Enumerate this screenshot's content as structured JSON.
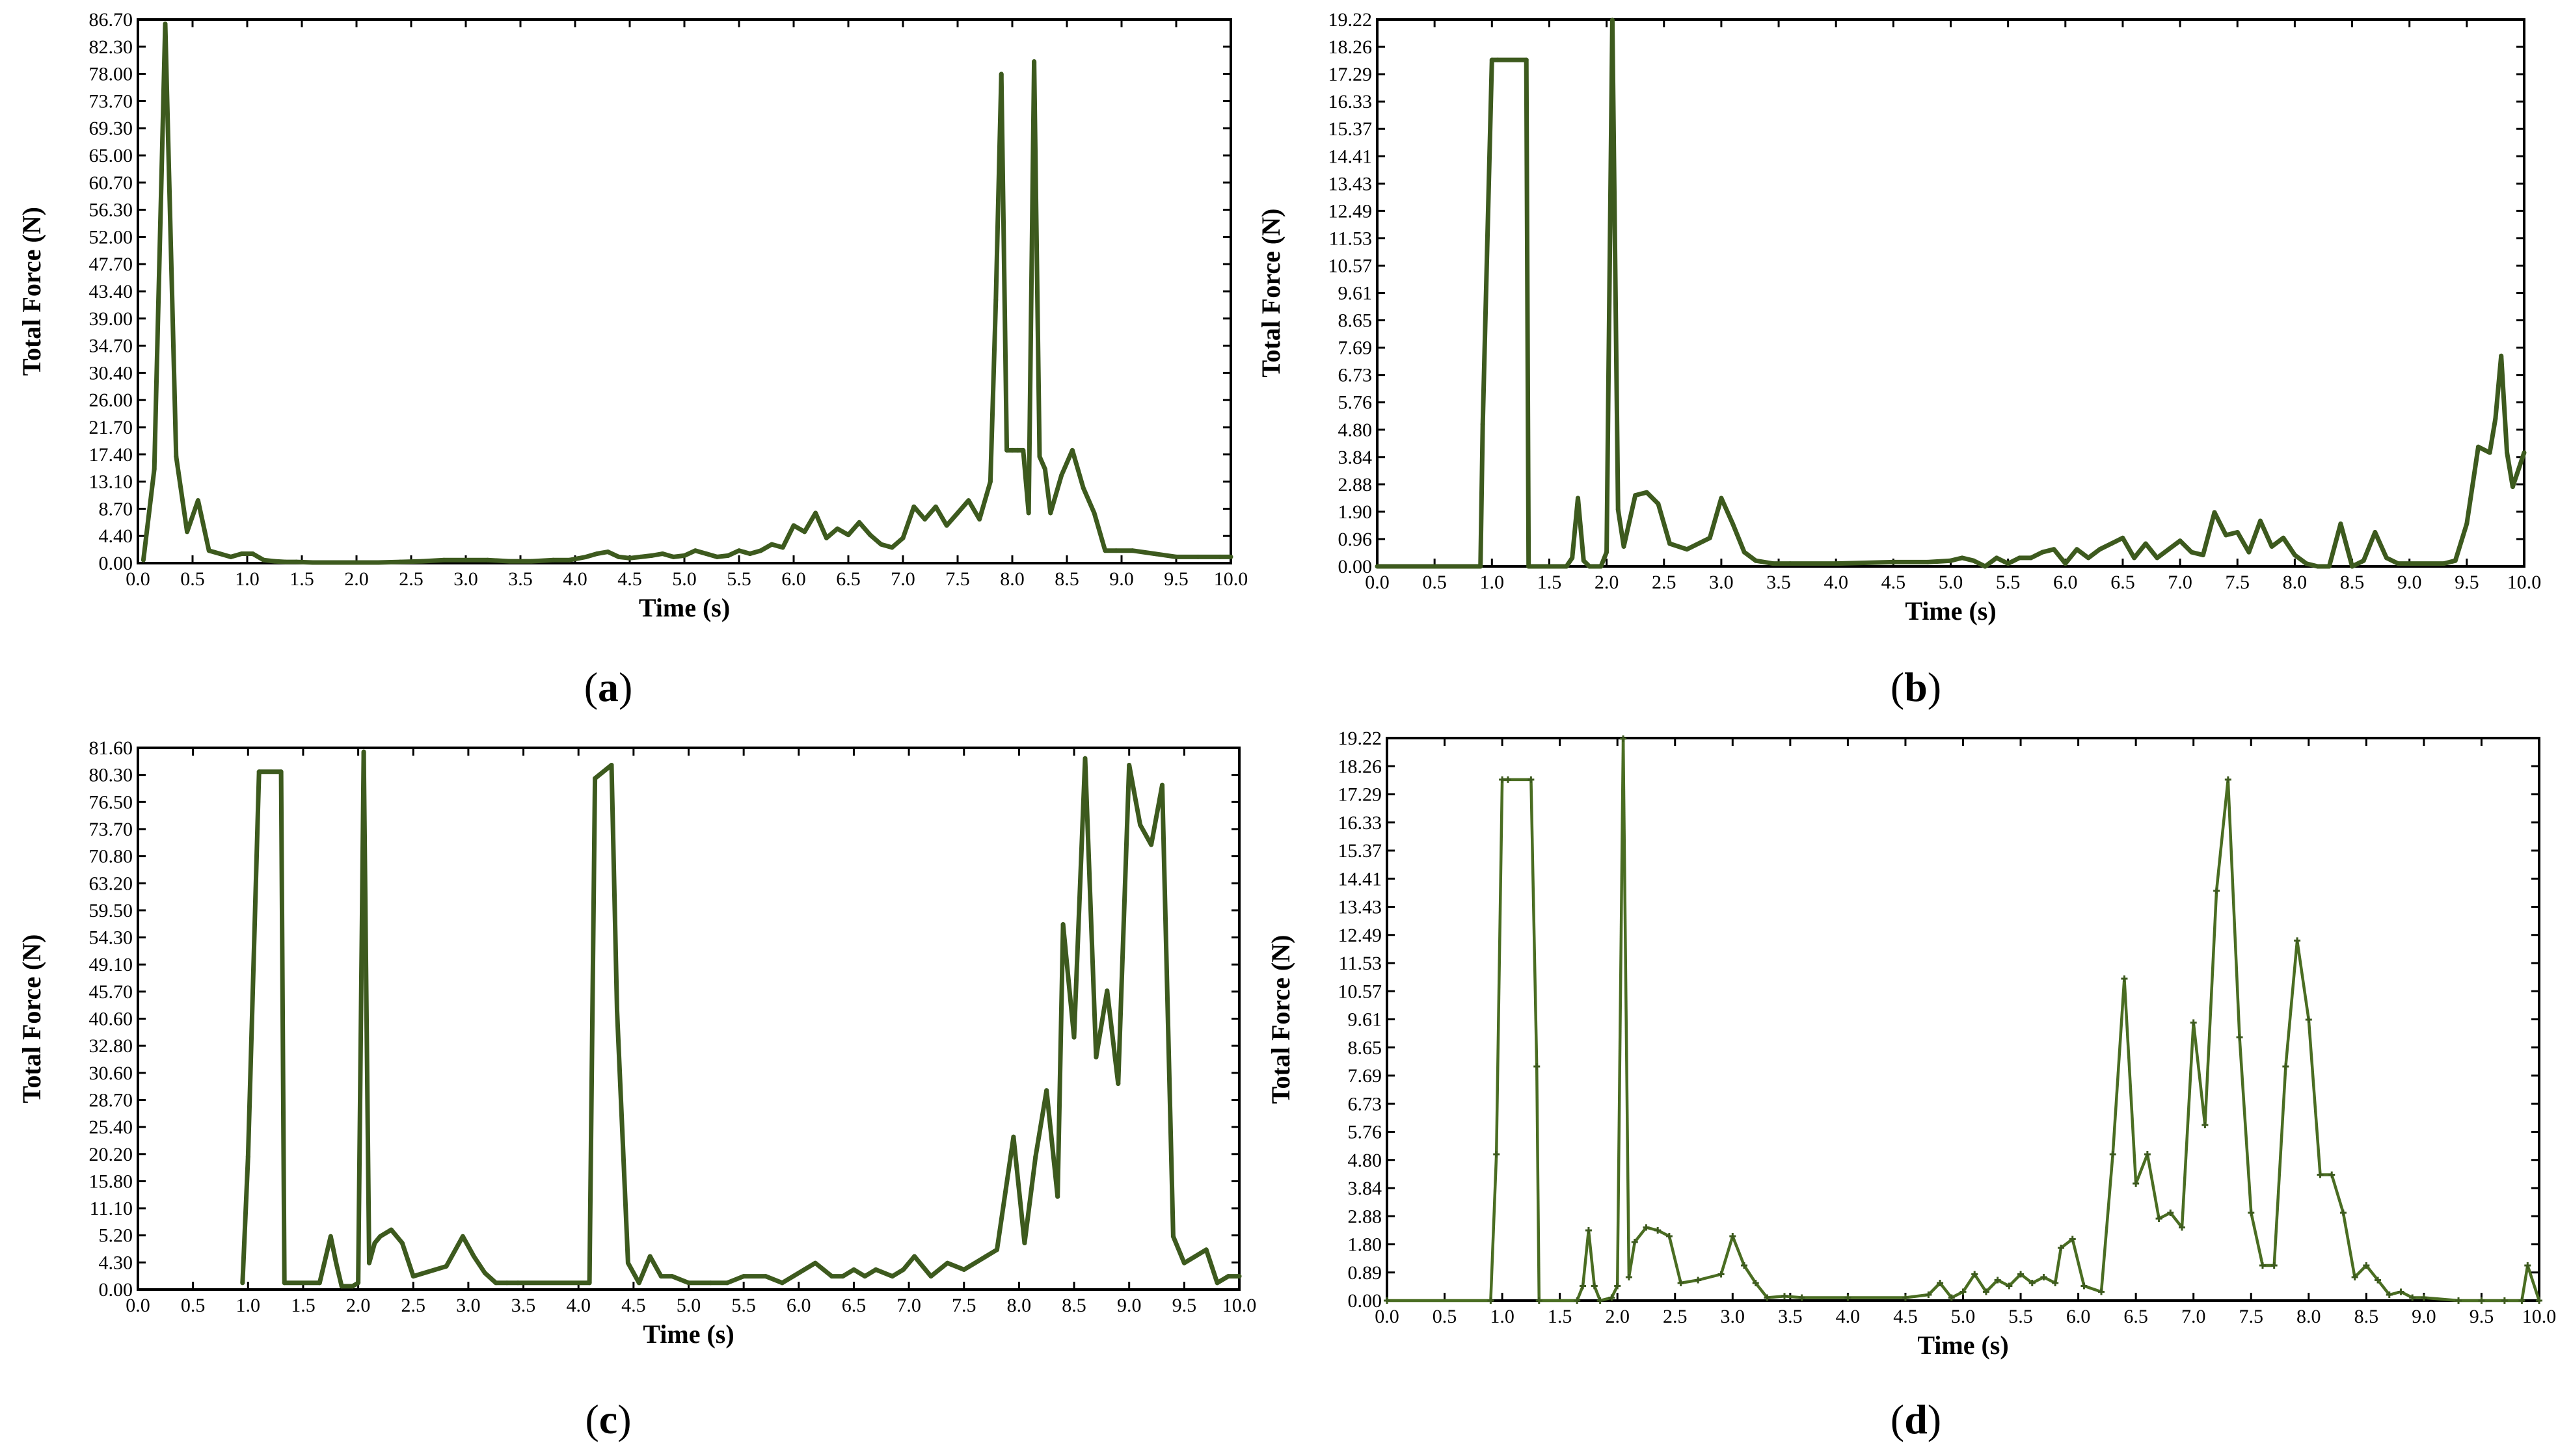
{
  "chart_data": [
    {
      "type": "line",
      "panel_label": "a",
      "xlabel": "Time (s)",
      "ylabel": "Total Force (N)",
      "xlim": [
        0,
        10
      ],
      "ylim": [
        0,
        86.7
      ],
      "xticks": [
        "0.0",
        "0.5",
        "1.0",
        "1.5",
        "2.0",
        "2.5",
        "3.0",
        "3.5",
        "4.0",
        "4.5",
        "5.0",
        "5.5",
        "6.0",
        "6.5",
        "7.0",
        "7.5",
        "8.0",
        "8.5",
        "9.0",
        "9.5",
        "10.0"
      ],
      "yticks": [
        "0.00",
        "4.40",
        "8.70",
        "13.10",
        "17.40",
        "21.70",
        "26.00",
        "30.40",
        "34.70",
        "39.00",
        "43.40",
        "47.70",
        "52.00",
        "56.30",
        "60.70",
        "65.00",
        "69.30",
        "73.70",
        "78.00",
        "82.30",
        "86.70"
      ],
      "markers": false,
      "x": [
        0.05,
        0.15,
        0.25,
        0.35,
        0.45,
        0.55,
        0.65,
        0.75,
        0.85,
        0.95,
        1.05,
        1.15,
        1.25,
        1.35,
        1.45,
        1.6,
        1.8,
        2.0,
        2.2,
        2.4,
        2.6,
        2.8,
        3.0,
        3.2,
        3.4,
        3.6,
        3.8,
        3.95,
        4.1,
        4.2,
        4.3,
        4.4,
        4.5,
        4.6,
        4.7,
        4.8,
        4.9,
        5.0,
        5.1,
        5.2,
        5.3,
        5.4,
        5.5,
        5.6,
        5.7,
        5.8,
        5.9,
        6.0,
        6.1,
        6.2,
        6.3,
        6.4,
        6.5,
        6.6,
        6.7,
        6.8,
        6.9,
        7.0,
        7.1,
        7.2,
        7.3,
        7.4,
        7.5,
        7.6,
        7.7,
        7.8,
        7.85,
        7.9,
        7.95,
        8.0,
        8.05,
        8.1,
        8.15,
        8.2,
        8.25,
        8.3,
        8.35,
        8.45,
        8.55,
        8.65,
        8.75,
        8.85,
        8.95,
        9.1,
        9.3,
        9.5,
        9.7,
        9.9,
        10.0
      ],
      "y": [
        0.5,
        15,
        86,
        17,
        5,
        10,
        2,
        1.5,
        1,
        1.5,
        1.5,
        0.5,
        0.3,
        0.2,
        0.2,
        0.1,
        0.1,
        0.1,
        0.1,
        0.2,
        0.3,
        0.5,
        0.5,
        0.5,
        0.3,
        0.3,
        0.5,
        0.5,
        1.0,
        1.5,
        1.8,
        1.0,
        0.8,
        1.0,
        1.2,
        1.5,
        1.0,
        1.2,
        2.0,
        1.5,
        1.0,
        1.2,
        2.0,
        1.5,
        2.0,
        3.0,
        2.5,
        6,
        5,
        8,
        4,
        5.5,
        4.5,
        6.5,
        4.5,
        3,
        2.5,
        4,
        9,
        7,
        9,
        6,
        8,
        10,
        7,
        13,
        42,
        78,
        18,
        18,
        18,
        18,
        8,
        80,
        17,
        15,
        8,
        14,
        18,
        12,
        8,
        2,
        2,
        2,
        1.5,
        1,
        1,
        1,
        1
      ]
    },
    {
      "type": "line",
      "panel_label": "b",
      "xlabel": "Time (s)",
      "ylabel": "Total Force (N)",
      "xlim": [
        0,
        10
      ],
      "ylim": [
        0,
        19.22
      ],
      "xticks": [
        "0.0",
        "0.5",
        "1.0",
        "1.5",
        "2.0",
        "2.5",
        "3.0",
        "3.5",
        "4.0",
        "4.5",
        "5.0",
        "5.5",
        "6.0",
        "6.5",
        "7.0",
        "7.5",
        "8.0",
        "8.5",
        "9.0",
        "9.5",
        "10.0"
      ],
      "yticks": [
        "0.00",
        "0.96",
        "1.90",
        "2.88",
        "3.84",
        "4.80",
        "5.76",
        "6.73",
        "7.69",
        "8.65",
        "9.61",
        "10.57",
        "11.53",
        "12.49",
        "13.43",
        "14.41",
        "15.37",
        "16.33",
        "17.29",
        "18.26",
        "19.22"
      ],
      "markers": false,
      "x": [
        0,
        0.9,
        0.92,
        1.0,
        1.05,
        1.3,
        1.32,
        1.65,
        1.7,
        1.75,
        1.8,
        1.85,
        1.9,
        1.95,
        2.0,
        2.05,
        2.1,
        2.15,
        2.25,
        2.35,
        2.45,
        2.55,
        2.7,
        2.9,
        3.0,
        3.1,
        3.2,
        3.3,
        3.45,
        3.6,
        4.0,
        4.5,
        4.8,
        5.0,
        5.1,
        5.2,
        5.3,
        5.4,
        5.5,
        5.6,
        5.7,
        5.8,
        5.9,
        6.0,
        6.1,
        6.2,
        6.3,
        6.4,
        6.5,
        6.6,
        6.7,
        6.8,
        6.9,
        7.0,
        7.1,
        7.2,
        7.3,
        7.4,
        7.5,
        7.6,
        7.7,
        7.8,
        7.9,
        8.0,
        8.1,
        8.2,
        8.3,
        8.4,
        8.5,
        8.6,
        8.7,
        8.8,
        8.9,
        9.0,
        9.3,
        9.4,
        9.5,
        9.6,
        9.7,
        9.75,
        9.8,
        9.85,
        9.9,
        10.0
      ],
      "y": [
        0,
        0,
        5,
        17.8,
        17.8,
        17.8,
        0,
        0,
        0.3,
        2.4,
        0.2,
        0,
        0,
        0,
        0.5,
        19.2,
        2.0,
        0.7,
        2.5,
        2.6,
        2.2,
        0.8,
        0.6,
        1.0,
        2.4,
        1.5,
        0.5,
        0.2,
        0.1,
        0.1,
        0.1,
        0.15,
        0.15,
        0.2,
        0.3,
        0.2,
        0,
        0.3,
        0.1,
        0.3,
        0.3,
        0.5,
        0.6,
        0.1,
        0.6,
        0.3,
        0.6,
        0.8,
        1.0,
        0.3,
        0.8,
        0.3,
        0.6,
        0.9,
        0.5,
        0.4,
        1.9,
        1.1,
        1.2,
        0.5,
        1.6,
        0.7,
        1.0,
        0.4,
        0.1,
        0,
        0,
        1.5,
        0,
        0.2,
        1.2,
        0.3,
        0.1,
        0.1,
        0.1,
        0.2,
        1.5,
        4.2,
        4.0,
        5.2,
        7.4,
        4.0,
        2.8,
        4.0
      ]
    },
    {
      "type": "line",
      "panel_label": "c",
      "xlabel": "Time (s)",
      "ylabel": "Total Force (N)",
      "xlim": [
        0,
        10
      ],
      "ylim": [
        0,
        81.6
      ],
      "xticks": [
        "0.0",
        "0.5",
        "1.0",
        "1.5",
        "2.0",
        "2.5",
        "3.0",
        "3.5",
        "4.0",
        "4.5",
        "5.0",
        "5.5",
        "6.0",
        "6.5",
        "7.0",
        "7.5",
        "8.0",
        "8.5",
        "9.0",
        "9.5",
        "10.0"
      ],
      "yticks": [
        "0.00",
        "4.30",
        "5.20",
        "11.10",
        "15.80",
        "20.20",
        "25.40",
        "28.70",
        "30.60",
        "32.80",
        "40.60",
        "45.70",
        "49.10",
        "54.30",
        "59.50",
        "63.20",
        "70.80",
        "73.70",
        "76.50",
        "80.30",
        "81.60"
      ],
      "markers": false,
      "x": [
        0.95,
        1.0,
        1.1,
        1.3,
        1.33,
        1.65,
        1.75,
        1.8,
        1.85,
        1.95,
        2.0,
        2.05,
        2.1,
        2.15,
        2.2,
        2.3,
        2.4,
        2.5,
        2.6,
        2.8,
        2.95,
        3.05,
        3.15,
        3.25,
        3.35,
        3.45,
        4.1,
        4.15,
        4.3,
        4.35,
        4.45,
        4.55,
        4.65,
        4.75,
        4.85,
        5.0,
        5.2,
        5.35,
        5.5,
        5.7,
        5.85,
        5.95,
        6.05,
        6.15,
        6.3,
        6.4,
        6.5,
        6.6,
        6.7,
        6.85,
        6.95,
        7.05,
        7.2,
        7.35,
        7.5,
        7.6,
        7.7,
        7.8,
        7.95,
        8.05,
        8.15,
        8.25,
        8.35,
        8.4,
        8.5,
        8.6,
        8.7,
        8.8,
        8.9,
        9.0,
        9.1,
        9.2,
        9.3,
        9.4,
        9.5,
        9.6,
        9.7,
        9.8,
        9.9,
        10.0
      ],
      "y": [
        1,
        20,
        78,
        78,
        1,
        1,
        8,
        4,
        0.5,
        0.5,
        1,
        81,
        4,
        7,
        8,
        9,
        7,
        2,
        2.5,
        3.5,
        8,
        5,
        2.5,
        1,
        1,
        1,
        1,
        77,
        79,
        42,
        4,
        1,
        5,
        2,
        2,
        1,
        1,
        1,
        2,
        2,
        1,
        2,
        3,
        4,
        2,
        2,
        3,
        2,
        3,
        2,
        3,
        5,
        2,
        4,
        3,
        4,
        5,
        6,
        23,
        7,
        20,
        30,
        14,
        55,
        38,
        80,
        35,
        45,
        31,
        79,
        70,
        67,
        76,
        8,
        4,
        5,
        6,
        1,
        2,
        2
      ]
    },
    {
      "type": "line",
      "panel_label": "d",
      "xlabel": "Time (s)",
      "ylabel": "Total Force (N)",
      "xlim": [
        0,
        10
      ],
      "ylim": [
        0,
        19.22
      ],
      "xticks": [
        "0.0",
        "0.5",
        "1.0",
        "1.5",
        "2.0",
        "2.5",
        "3.0",
        "3.5",
        "4.0",
        "4.5",
        "5.0",
        "5.5",
        "6.0",
        "6.5",
        "7.0",
        "7.5",
        "8.0",
        "8.5",
        "9.0",
        "9.5",
        "10.0"
      ],
      "yticks": [
        "0.00",
        "0.89",
        "1.80",
        "2.88",
        "3.84",
        "4.80",
        "5.76",
        "6.73",
        "7.69",
        "8.65",
        "9.61",
        "10.57",
        "11.53",
        "12.49",
        "13.43",
        "14.41",
        "15.37",
        "16.33",
        "17.29",
        "18.26",
        "19.22"
      ],
      "markers": true,
      "x": [
        0,
        0.9,
        0.95,
        1.0,
        1.05,
        1.25,
        1.3,
        1.32,
        1.65,
        1.7,
        1.75,
        1.8,
        1.85,
        1.95,
        2.0,
        2.05,
        2.1,
        2.15,
        2.25,
        2.35,
        2.45,
        2.55,
        2.7,
        2.9,
        3.0,
        3.1,
        3.2,
        3.3,
        3.45,
        3.6,
        4.0,
        4.5,
        4.7,
        4.8,
        4.9,
        5.0,
        5.1,
        5.2,
        5.3,
        5.4,
        5.5,
        5.6,
        5.7,
        5.8,
        5.85,
        5.95,
        6.05,
        6.2,
        6.3,
        6.4,
        6.5,
        6.6,
        6.7,
        6.8,
        6.9,
        7.0,
        7.1,
        7.2,
        7.3,
        7.4,
        7.5,
        7.6,
        7.7,
        7.8,
        7.9,
        8.0,
        8.1,
        8.2,
        8.3,
        8.4,
        8.5,
        8.6,
        8.7,
        8.8,
        8.9,
        9.0,
        9.3,
        9.5,
        9.7,
        9.85,
        9.9,
        10.0
      ],
      "y": [
        0,
        0,
        5,
        17.8,
        17.8,
        17.8,
        8,
        0,
        0,
        0.5,
        2.4,
        0.5,
        0,
        0.1,
        0.5,
        19.2,
        0.8,
        2.0,
        2.5,
        2.4,
        2.2,
        0.6,
        0.7,
        0.9,
        2.2,
        1.2,
        0.6,
        0.1,
        0.15,
        0.1,
        0.1,
        0.1,
        0.2,
        0.6,
        0.1,
        0.3,
        0.9,
        0.3,
        0.7,
        0.5,
        0.9,
        0.6,
        0.8,
        0.6,
        1.8,
        2.1,
        0.5,
        0.3,
        5,
        11,
        4,
        5,
        2.8,
        3,
        2.5,
        9.5,
        6,
        14,
        17.8,
        9,
        3,
        1.2,
        1.2,
        8,
        12.3,
        9.6,
        4.3,
        4.3,
        3,
        0.8,
        1.2,
        0.7,
        0.2,
        0.3,
        0.1,
        0.1,
        0,
        0,
        0,
        0,
        1.2,
        0
      ]
    }
  ]
}
